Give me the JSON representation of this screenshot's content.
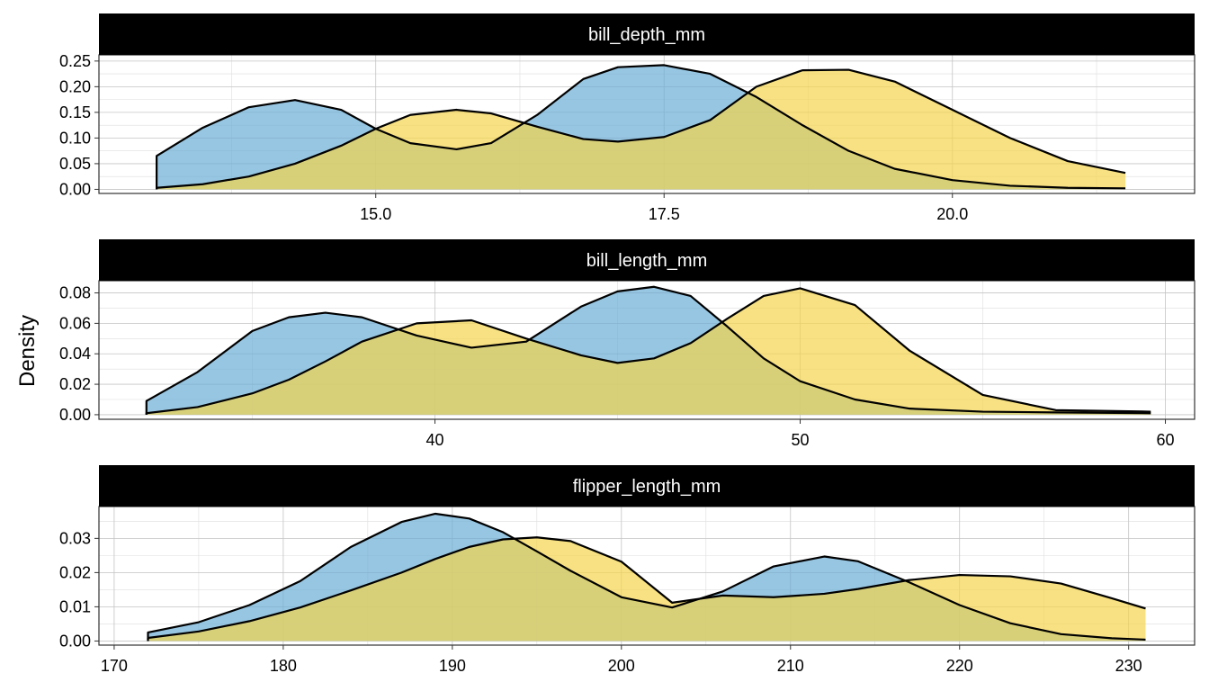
{
  "chart_data": {
    "type": "area",
    "ylabel": "Density",
    "xlabel": "",
    "grid": true,
    "colors": {
      "blue_fill": "#6baed6",
      "yellow_fill": "#f4d44d",
      "line": "#000000",
      "strip": "#000000"
    },
    "panels": [
      {
        "strip": "bill_depth_mm",
        "xlim": [
          12.6,
          22.1
        ],
        "ylim": [
          -0.008,
          0.262
        ],
        "x_ticks": [
          {
            "value": 15,
            "label": "15.0"
          },
          {
            "value": 17.5,
            "label": "17.5"
          },
          {
            "value": 20,
            "label": "20.0"
          }
        ],
        "y_ticks": [
          {
            "value": 0,
            "label": "0.00"
          },
          {
            "value": 0.05,
            "label": "0.05"
          },
          {
            "value": 0.1,
            "label": "0.10"
          },
          {
            "value": 0.15,
            "label": "0.15"
          },
          {
            "value": 0.2,
            "label": "0.20"
          },
          {
            "value": 0.25,
            "label": "0.25"
          }
        ],
        "series": [
          {
            "fill": "#6baed6",
            "x": [
              13.1,
              13.5,
              13.9,
              14.3,
              14.7,
              15.0,
              15.3,
              15.7,
              16.0,
              16.4,
              16.8,
              17.1,
              17.5,
              17.9,
              18.3,
              18.7,
              19.1,
              19.5,
              20.0,
              20.5,
              21.0,
              21.5
            ],
            "y": [
              0.065,
              0.12,
              0.16,
              0.174,
              0.155,
              0.118,
              0.09,
              0.078,
              0.09,
              0.145,
              0.215,
              0.238,
              0.242,
              0.225,
              0.18,
              0.125,
              0.075,
              0.04,
              0.018,
              0.007,
              0.003,
              0.002
            ]
          },
          {
            "fill": "#f4d44d",
            "x": [
              13.1,
              13.5,
              13.9,
              14.3,
              14.7,
              15.0,
              15.3,
              15.7,
              16.0,
              16.4,
              16.8,
              17.1,
              17.5,
              17.9,
              18.3,
              18.7,
              19.1,
              19.5,
              20.0,
              20.5,
              21.0,
              21.5
            ],
            "y": [
              0.003,
              0.01,
              0.025,
              0.05,
              0.085,
              0.118,
              0.145,
              0.155,
              0.148,
              0.122,
              0.098,
              0.093,
              0.102,
              0.135,
              0.2,
              0.232,
              0.233,
              0.21,
              0.155,
              0.1,
              0.055,
              0.032
            ]
          }
        ]
      },
      {
        "strip": "bill_length_mm",
        "xlim": [
          30.8,
          60.8
        ],
        "ylim": [
          -0.003,
          0.088
        ],
        "x_ticks": [
          {
            "value": 40,
            "label": "40"
          },
          {
            "value": 50,
            "label": "50"
          },
          {
            "value": 60,
            "label": "60"
          }
        ],
        "y_ticks": [
          {
            "value": 0,
            "label": "0.00"
          },
          {
            "value": 0.02,
            "label": "0.02"
          },
          {
            "value": 0.04,
            "label": "0.04"
          },
          {
            "value": 0.06,
            "label": "0.06"
          },
          {
            "value": 0.08,
            "label": "0.08"
          }
        ],
        "series": [
          {
            "fill": "#6baed6",
            "x": [
              32.1,
              33.5,
              35.0,
              36.0,
              37.0,
              38.0,
              39.5,
              41.0,
              42.5,
              44.0,
              45.0,
              46.0,
              47.0,
              48.0,
              49.0,
              50.0,
              51.5,
              53.0,
              55.0,
              57.0,
              59.6
            ],
            "y": [
              0.009,
              0.028,
              0.055,
              0.064,
              0.067,
              0.064,
              0.052,
              0.044,
              0.048,
              0.071,
              0.081,
              0.084,
              0.078,
              0.058,
              0.037,
              0.022,
              0.01,
              0.004,
              0.002,
              0.0015,
              0.001
            ]
          },
          {
            "fill": "#f4d44d",
            "x": [
              32.1,
              33.5,
              35.0,
              36.0,
              37.0,
              38.0,
              39.5,
              41.0,
              42.5,
              44.0,
              45.0,
              46.0,
              47.0,
              48.0,
              49.0,
              50.0,
              51.5,
              53.0,
              55.0,
              57.0,
              59.6
            ],
            "y": [
              0.001,
              0.005,
              0.014,
              0.023,
              0.035,
              0.048,
              0.06,
              0.062,
              0.05,
              0.039,
              0.034,
              0.037,
              0.047,
              0.063,
              0.078,
              0.083,
              0.072,
              0.042,
              0.013,
              0.003,
              0.002
            ]
          }
        ]
      },
      {
        "strip": "flipper_length_mm",
        "xlim": [
          169.1,
          233.9
        ],
        "ylim": [
          -0.0012,
          0.0393
        ],
        "x_ticks": [
          {
            "value": 170,
            "label": "170"
          },
          {
            "value": 180,
            "label": "180"
          },
          {
            "value": 190,
            "label": "190"
          },
          {
            "value": 200,
            "label": "200"
          },
          {
            "value": 210,
            "label": "210"
          },
          {
            "value": 220,
            "label": "220"
          },
          {
            "value": 230,
            "label": "230"
          }
        ],
        "y_ticks": [
          {
            "value": 0,
            "label": "0.00"
          },
          {
            "value": 0.01,
            "label": "0.01"
          },
          {
            "value": 0.02,
            "label": "0.02"
          },
          {
            "value": 0.03,
            "label": "0.03"
          }
        ],
        "series": [
          {
            "fill": "#6baed6",
            "x": [
              172,
              175,
              178,
              181,
              184,
              187,
              189,
              191,
              193,
              195,
              197,
              200,
              203,
              206,
              209,
              212,
              214,
              217,
              220,
              223,
              226,
              229,
              231
            ],
            "y": [
              0.0025,
              0.0055,
              0.0105,
              0.0175,
              0.0275,
              0.0348,
              0.0372,
              0.0358,
              0.0318,
              0.0262,
              0.0205,
              0.0128,
              0.0098,
              0.0145,
              0.0218,
              0.0247,
              0.0233,
              0.0172,
              0.0105,
              0.0052,
              0.002,
              0.0008,
              0.0004
            ]
          },
          {
            "fill": "#f4d44d",
            "x": [
              172,
              175,
              178,
              181,
              184,
              187,
              189,
              191,
              193,
              195,
              197,
              200,
              203,
              206,
              209,
              212,
              214,
              217,
              220,
              223,
              226,
              229,
              231
            ],
            "y": [
              0.0009,
              0.0028,
              0.0058,
              0.0098,
              0.0148,
              0.02,
              0.024,
              0.0275,
              0.0297,
              0.0303,
              0.0292,
              0.0232,
              0.0112,
              0.0133,
              0.0128,
              0.0138,
              0.0152,
              0.0178,
              0.0193,
              0.0189,
              0.0168,
              0.0125,
              0.0095
            ]
          }
        ]
      }
    ]
  }
}
